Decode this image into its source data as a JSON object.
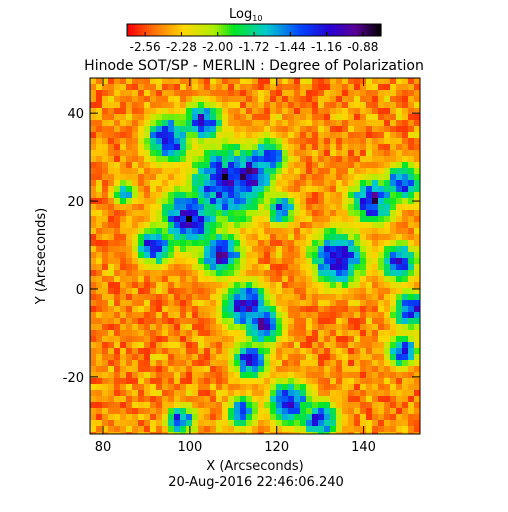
{
  "chart_data": {
    "type": "heatmap",
    "title": "Hinode SOT/SP - MERLIN : Degree of Polarization",
    "xlabel": "X (Arcseconds)",
    "ylabel": "Y (Arcseconds)",
    "xlim": [
      77,
      153
    ],
    "ylim": [
      -33,
      48
    ],
    "x_ticks": [
      80,
      100,
      120,
      140
    ],
    "y_ticks": [
      -20,
      0,
      20,
      40
    ],
    "colorbar": {
      "label_main": "Log",
      "label_sub": "10",
      "range": [
        -2.7,
        -0.74
      ],
      "ticks": [
        "-2.56",
        "-2.28",
        "-2.00",
        "-1.72",
        "-1.44",
        "-1.16",
        "-0.88"
      ],
      "tick_values": [
        -2.56,
        -2.28,
        -2.0,
        -1.72,
        -1.44,
        -1.16,
        -0.88
      ],
      "colormap": "rainbow (red = low, black/violet = high)"
    },
    "timestamp": "20-Aug-2016 22:46:06.240",
    "network_features": [
      {
        "x": 109,
        "y": 24,
        "r": 10,
        "v": -1.0
      },
      {
        "x": 114,
        "y": 26,
        "r": 6,
        "v": -0.95
      },
      {
        "x": 100,
        "y": 16,
        "r": 8,
        "v": -1.1
      },
      {
        "x": 95,
        "y": 34,
        "r": 6,
        "v": -1.15
      },
      {
        "x": 103,
        "y": 38,
        "r": 5,
        "v": -1.1
      },
      {
        "x": 118,
        "y": 30,
        "r": 5,
        "v": -1.2
      },
      {
        "x": 107,
        "y": 8,
        "r": 6,
        "v": -1.1
      },
      {
        "x": 92,
        "y": 10,
        "r": 5,
        "v": -1.2
      },
      {
        "x": 113,
        "y": -4,
        "r": 6,
        "v": -0.95
      },
      {
        "x": 117,
        "y": -8,
        "r": 5,
        "v": -1.05
      },
      {
        "x": 114,
        "y": -16,
        "r": 5,
        "v": -1.2
      },
      {
        "x": 134,
        "y": 7,
        "r": 7,
        "v": -0.95
      },
      {
        "x": 142,
        "y": 20,
        "r": 6,
        "v": -1.1
      },
      {
        "x": 149,
        "y": 24,
        "r": 5,
        "v": -1.15
      },
      {
        "x": 148,
        "y": 6,
        "r": 5,
        "v": -1.15
      },
      {
        "x": 151,
        "y": -5,
        "r": 5,
        "v": -1.15
      },
      {
        "x": 149,
        "y": -14,
        "r": 4,
        "v": -1.2
      },
      {
        "x": 123,
        "y": -26,
        "r": 6,
        "v": -1.2
      },
      {
        "x": 130,
        "y": -30,
        "r": 5,
        "v": -1.2
      },
      {
        "x": 112,
        "y": -28,
        "r": 4,
        "v": -1.3
      },
      {
        "x": 98,
        "y": -30,
        "r": 4,
        "v": -1.3
      },
      {
        "x": 121,
        "y": 18,
        "r": 4,
        "v": -1.3
      },
      {
        "x": 85,
        "y": 22,
        "r": 3,
        "v": -1.4
      }
    ]
  }
}
